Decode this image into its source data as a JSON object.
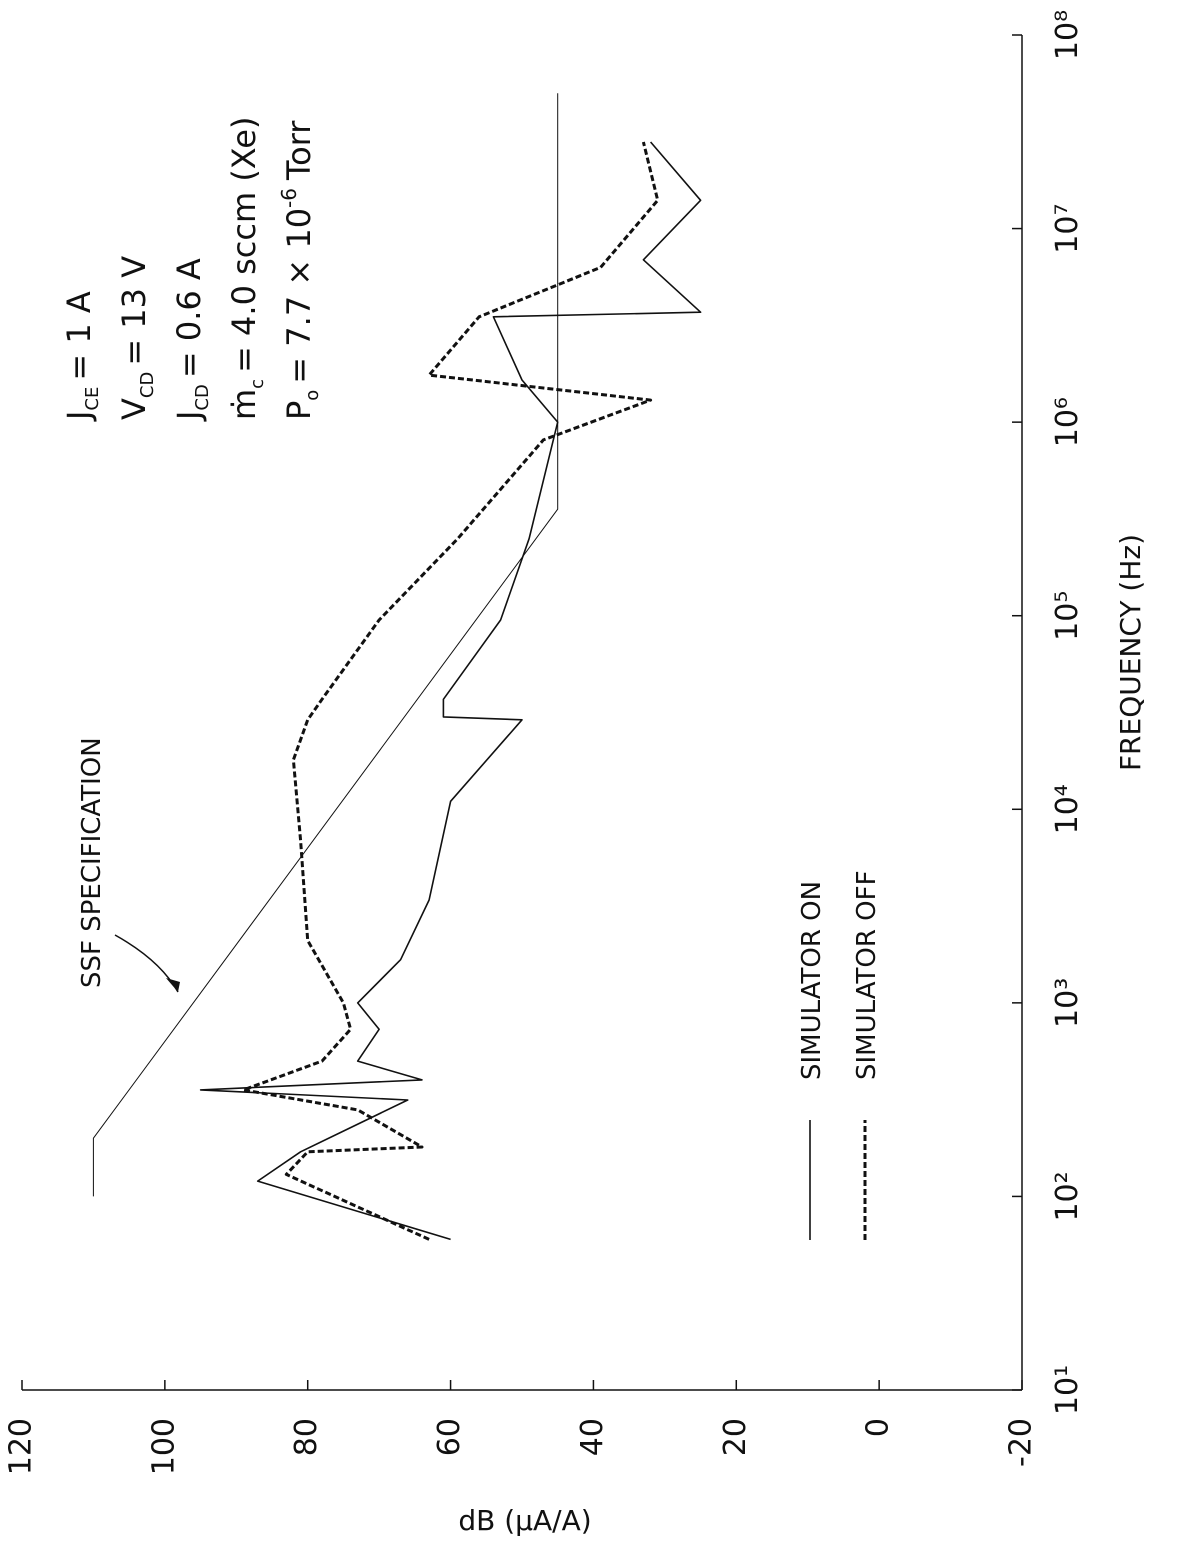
{
  "chart_data": {
    "type": "line",
    "xlabel": "FREQUENCY (Hz)",
    "ylabel": "dB (µA/A)",
    "xscale": "log",
    "xlim": [
      10,
      100000000
    ],
    "ylim": [
      -20,
      120
    ],
    "xticks": [
      {
        "value": 10,
        "label": "10¹"
      },
      {
        "value": 100,
        "label": "10²"
      },
      {
        "value": 1000,
        "label": "10³"
      },
      {
        "value": 10000,
        "label": "10⁴"
      },
      {
        "value": 100000,
        "label": "10⁵"
      },
      {
        "value": 1000000,
        "label": "10⁶"
      },
      {
        "value": 10000000,
        "label": "10⁷"
      },
      {
        "value": 100000000,
        "label": "10⁸"
      }
    ],
    "yticks": [
      -20,
      0,
      20,
      40,
      60,
      80,
      100,
      120
    ],
    "grid": false,
    "series": [
      {
        "name": "SIMULATOR ON",
        "color": "#111111",
        "linestyle": "solid",
        "x": [
          60,
          120,
          170,
          315,
          355,
          400,
          500,
          730,
          1000,
          1670,
          3400,
          11000,
          29000,
          30000,
          37000,
          95000,
          250000,
          1000000,
          1650000,
          3500000,
          3700000,
          6900000,
          14000000,
          28000000
        ],
        "values": [
          60,
          87,
          81,
          66,
          95,
          64,
          73,
          70,
          73,
          67,
          63,
          60,
          50,
          61,
          61,
          53,
          49,
          45,
          50,
          54,
          25,
          33,
          25,
          32
        ]
      },
      {
        "name": "SIMULATOR OFF",
        "color": "#111111",
        "linestyle": "dashed",
        "x": [
          60,
          130,
          170,
          180,
          280,
          355,
          500,
          730,
          1000,
          2100,
          6900,
          18000,
          29000,
          37000,
          95000,
          250000,
          810000,
          1300000,
          1750000,
          3500000,
          6300000,
          14000000,
          28000000
        ],
        "values": [
          63,
          83,
          80,
          64,
          73,
          89,
          78,
          74,
          75,
          80,
          81,
          82,
          80,
          78,
          70,
          59,
          47,
          32,
          63,
          56,
          39,
          31,
          33
        ]
      },
      {
        "name": "SSF SPECIFICATION",
        "color": "#111111",
        "linestyle": "thin",
        "x": [
          100,
          200,
          355000,
          50000000
        ],
        "values": [
          110,
          110,
          45,
          45
        ]
      }
    ],
    "legend": "bottom-left",
    "annotations": [
      {
        "symbol": "J",
        "sub": "CE",
        "text": "= 1 A"
      },
      {
        "symbol": "V",
        "sub": "CD",
        "text": "= 13 V"
      },
      {
        "symbol": "J",
        "sub": "CD",
        "text": "= 0.6 A"
      },
      {
        "symbol": "ṁ",
        "sub": "c",
        "text": "= 4.0 sccm (Xe)"
      },
      {
        "symbol": "P",
        "sub": "o",
        "text": "= 7.7 × 10",
        "sup": "-6",
        "after": "Torr"
      }
    ]
  }
}
